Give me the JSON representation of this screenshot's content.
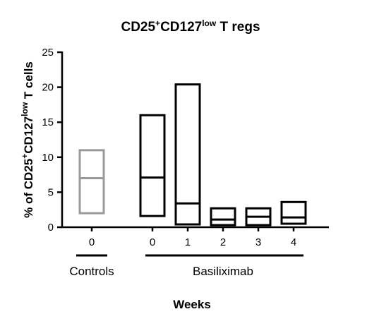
{
  "chart_data": {
    "type": "box",
    "title": "CD25",
    "title_sup1": "+",
    "title_mid": "CD127",
    "title_sup2": "low",
    "title_end": " T regs",
    "ylabel": "% of CD25",
    "ylabel_sup1": "+",
    "ylabel_mid": "CD127",
    "ylabel_sup2": "low",
    "ylabel_end": " T cells",
    "xlabel": "Weeks",
    "ylim": [
      0,
      25
    ],
    "yticks": [
      "0",
      "5",
      "10",
      "15",
      "20",
      "25"
    ],
    "groups": [
      {
        "name": "Controls",
        "color": "#9a9a9a",
        "boxes": [
          {
            "category": "0",
            "min": 2,
            "median": 7,
            "max": 11
          }
        ]
      },
      {
        "name": "Basiliximab",
        "color": "#000000",
        "boxes": [
          {
            "category": "0",
            "min": 1.6,
            "median": 7.1,
            "max": 16
          },
          {
            "category": "1",
            "min": 0.4,
            "median": 3.4,
            "max": 20.4
          },
          {
            "category": "2",
            "min": 0.3,
            "median": 1.1,
            "max": 2.7
          },
          {
            "category": "3",
            "min": 0.3,
            "median": 1.5,
            "max": 2.7
          },
          {
            "category": "4",
            "min": 0.5,
            "median": 1.4,
            "max": 3.6
          }
        ]
      }
    ],
    "grid": false,
    "legend": "none"
  }
}
